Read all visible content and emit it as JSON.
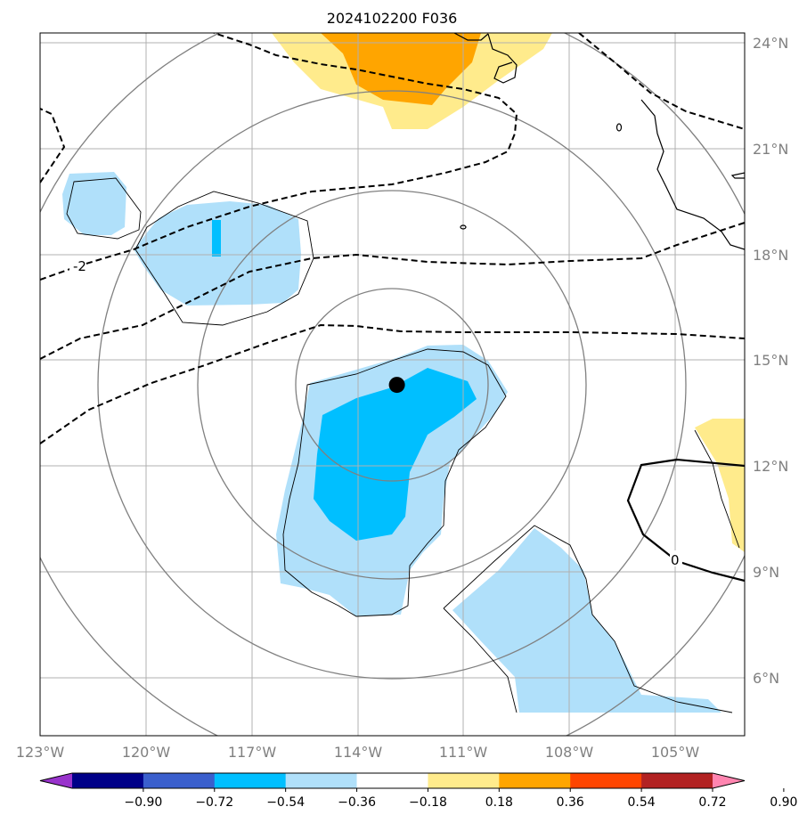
{
  "title": "2024102200 F036",
  "map": {
    "lon_labels": [
      "123°W",
      "120°W",
      "117°W",
      "114°W",
      "111°W",
      "108°W",
      "105°W"
    ],
    "lat_labels": [
      "24°N",
      "21°N",
      "18°N",
      "15°N",
      "12°N",
      "9°N",
      "6°N"
    ],
    "contour_labels": [
      "-2",
      "0"
    ],
    "storm_center": {
      "lon": -112.9,
      "lat": 14.3
    }
  },
  "colorbar": {
    "ticks": [
      "−0.90",
      "−0.72",
      "−0.54",
      "−0.36",
      "−0.18",
      "0.18",
      "0.36",
      "0.54",
      "0.72",
      "0.90"
    ],
    "colors": [
      "#9933cc",
      "#000088",
      "#3a5fcd",
      "#00bfff",
      "#b0e0fa",
      "#ffffff",
      "#ffeb8c",
      "#ffa500",
      "#ff4500",
      "#b22222",
      "#ff85b0"
    ]
  }
}
